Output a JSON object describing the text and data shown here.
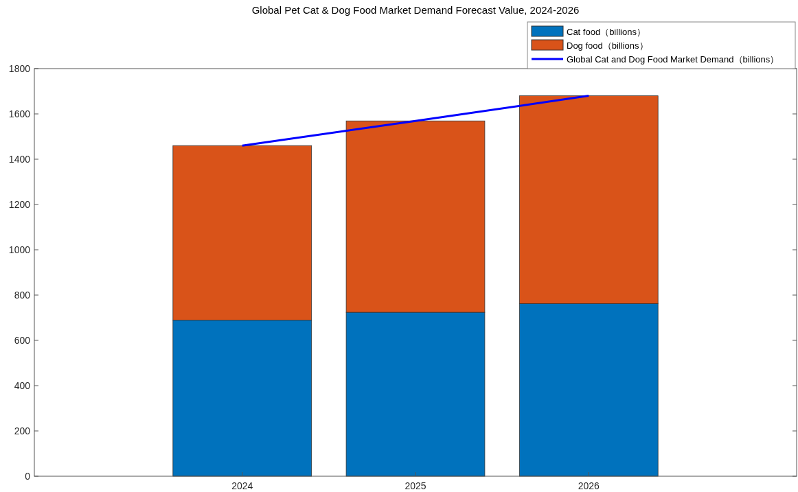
{
  "chart_data": {
    "type": "bar",
    "title": "Global Pet Cat & Dog Food Market Demand Forecast Value, 2024-2026",
    "categories": [
      "2024",
      "2025",
      "2026"
    ],
    "stacked": true,
    "series": [
      {
        "name": "Cat food（billions）",
        "color": "#0072bd",
        "values": [
          689,
          724,
          762
        ]
      },
      {
        "name": "Dog food（billions）",
        "color": "#d95319",
        "values": [
          771,
          845,
          918
        ]
      },
      {
        "name": "Global Cat and Dog Food Market Demand（billions）",
        "type": "line",
        "color": "#0000ff",
        "values": [
          1460,
          1569,
          1680
        ]
      }
    ],
    "ylim": [
      0,
      1800
    ],
    "yticks": [
      0,
      200,
      400,
      600,
      800,
      1000,
      1200,
      1400,
      1600,
      1800
    ],
    "grid": false,
    "legend": "top right"
  }
}
